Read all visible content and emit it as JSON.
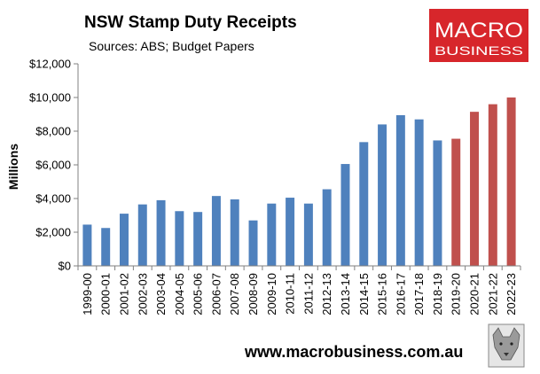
{
  "logo": {
    "line1": "MACRO",
    "line2": "BUSINESS",
    "background_color": "#d7262b"
  },
  "footer": {
    "url": "www.macrobusiness.com.au",
    "emblem_icon": "wolf-emblem-icon"
  },
  "chart_data": {
    "type": "bar",
    "title": "NSW Stamp Duty Receipts",
    "subtitle": "Sources: ABS; Budget Papers",
    "xlabel": "",
    "ylabel": "Millions",
    "ylim": [
      0,
      12000
    ],
    "y_ticks": [
      0,
      2000,
      4000,
      6000,
      8000,
      10000,
      12000
    ],
    "y_tick_labels": [
      "$0",
      "$2,000",
      "$4,000",
      "$6,000",
      "$8,000",
      "$10,000",
      "$12,000"
    ],
    "grid": false,
    "legend": "none",
    "categories": [
      "1999-00",
      "2000-01",
      "2001-02",
      "2002-03",
      "2003-04",
      "2004-05",
      "2005-06",
      "2006-07",
      "2007-08",
      "2008-09",
      "2009-10",
      "2010-11",
      "2011-12",
      "2012-13",
      "2013-14",
      "2014-15",
      "2015-16",
      "2016-17",
      "2017-18",
      "2018-19",
      "2019-20",
      "2020-21",
      "2021-22",
      "2022-23"
    ],
    "values": [
      2450,
      2250,
      3100,
      3650,
      3900,
      3250,
      3200,
      4150,
      3950,
      2700,
      3700,
      4050,
      3700,
      4550,
      6050,
      7350,
      8400,
      8950,
      8700,
      7450,
      7550,
      9150,
      9600,
      10000
    ],
    "colors": {
      "actual": "#4f81bd",
      "budget": "#c0504d"
    },
    "bar_colors": [
      "actual",
      "actual",
      "actual",
      "actual",
      "actual",
      "actual",
      "actual",
      "actual",
      "actual",
      "actual",
      "actual",
      "actual",
      "actual",
      "actual",
      "actual",
      "actual",
      "actual",
      "actual",
      "actual",
      "actual",
      "budget",
      "budget",
      "budget",
      "budget"
    ]
  }
}
